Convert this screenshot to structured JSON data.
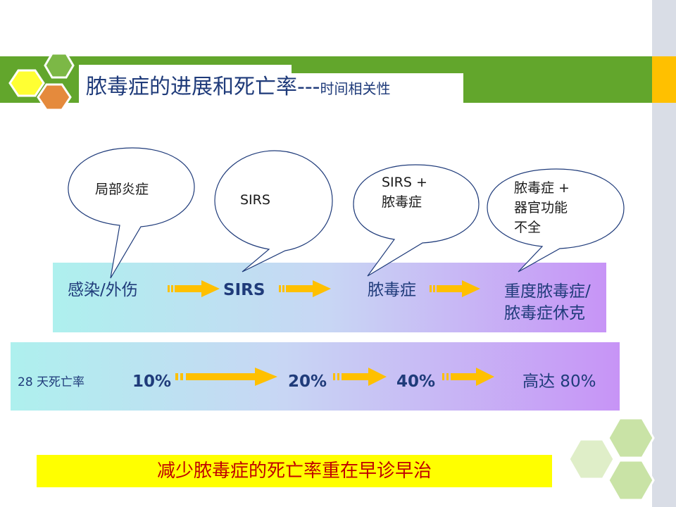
{
  "title": {
    "main": "脓毒症的进展和死亡率---",
    "sub": "时间相关性"
  },
  "bubbles": [
    {
      "text": "局部炎症"
    },
    {
      "text": "SIRS"
    },
    {
      "text": "SIRS +\n脓毒症"
    },
    {
      "text": "脓毒症 +\n器官功能\n不全"
    }
  ],
  "stages": [
    "感染/外伤",
    "SIRS",
    "脓毒症",
    "重度脓毒症/",
    "脓毒症休克"
  ],
  "mortality": {
    "label": "28 天死亡率",
    "values": [
      "10%",
      "20%",
      "40%",
      "高达 80%"
    ]
  },
  "conclusion": "减少脓毒症的死亡率重在早诊早治",
  "colors": {
    "title_band": "#62a62c",
    "accent": "#ffc000",
    "arrow": "#ffc000",
    "text_blue": "#1f3b7a",
    "conclusion_text": "#c00000",
    "conclusion_bg": "#ffff00"
  }
}
